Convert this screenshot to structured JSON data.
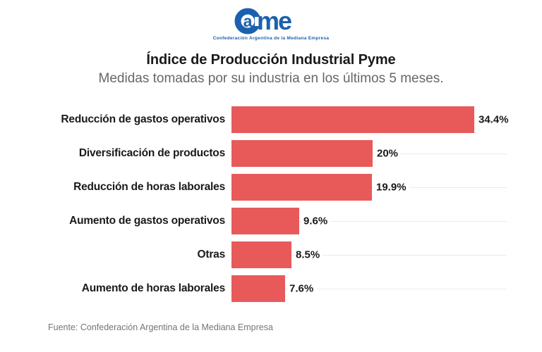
{
  "logo": {
    "name": "CAME",
    "letter_a": "a",
    "letters_me": "me",
    "tagline": "Confederación Argentina de la Mediana Empresa",
    "color": "#1b61ad"
  },
  "header": {
    "title": "Índice de Producción Industrial Pyme",
    "subtitle": "Medidas tomadas por su industria en los últimos 5 meses."
  },
  "footer": {
    "source": "Fuente: Confederación Argentina de la Mediana Empresa"
  },
  "chart_data": {
    "type": "bar",
    "orientation": "horizontal",
    "title": "Índice de Producción Industrial Pyme",
    "subtitle": "Medidas tomadas por su industria en los últimos 5 meses.",
    "categories": [
      "Reducción de gastos operativos",
      "Diversificación de productos",
      "Reducción de horas laborales",
      "Aumento de gastos operativos",
      "Otras",
      "Aumento de horas laborales"
    ],
    "values": [
      34.4,
      20,
      19.9,
      9.6,
      8.5,
      7.6
    ],
    "value_labels": [
      "34.4%",
      "20%",
      "19.9%",
      "9.6%",
      "8.5%",
      "7.6%"
    ],
    "xlabel": "",
    "ylabel": "",
    "xlim": [
      0,
      39
    ],
    "bar_color": "#e85a5a",
    "grid": "row-guides",
    "legend": "none",
    "source": "Fuente: Confederación Argentina de la Mediana Empresa"
  }
}
